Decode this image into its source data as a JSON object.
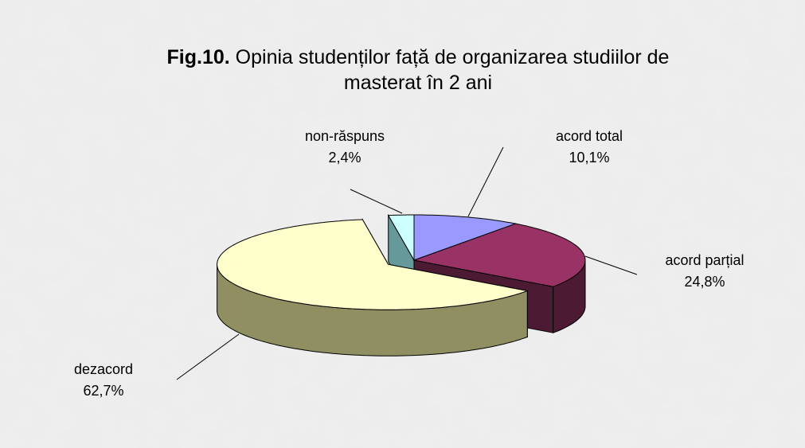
{
  "chart_data": {
    "type": "pie",
    "figure_label": "Fig.10.",
    "title": "Opinia studenților față de organizarea studiilor de masterat în 2 ani",
    "categories": [
      "acord total",
      "acord parțial",
      "dezacord",
      "non-răspuns"
    ],
    "values": [
      10.1,
      24.8,
      62.7,
      2.4
    ],
    "value_labels": [
      "10,1%",
      "24,8%",
      "62,7%",
      "2,4%"
    ],
    "colors": [
      "#9999ff",
      "#993366",
      "#ffffcc",
      "#ccffff"
    ],
    "side_colors": [
      "#5c5c99",
      "#4d1a33",
      "#8f8f62",
      "#669999"
    ]
  }
}
